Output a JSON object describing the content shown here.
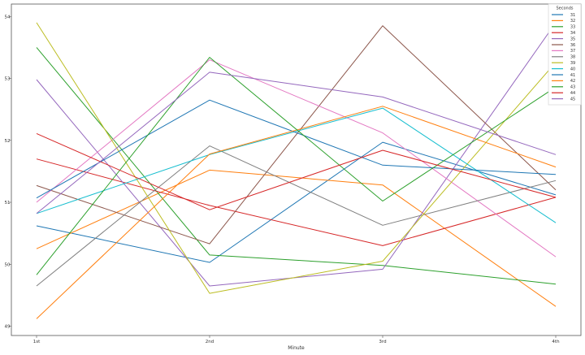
{
  "chart_data": {
    "type": "line",
    "title": "",
    "xlabel": "Minute",
    "ylabel": "",
    "categories": [
      "1st",
      "2nd",
      "3rd",
      "4th"
    ],
    "ylim": [
      48.85,
      54.2
    ],
    "yticks": [
      49,
      50,
      51,
      52,
      53,
      54
    ],
    "grid": false,
    "legend": {
      "title": "Seconds",
      "placement": "top-right"
    },
    "series": [
      {
        "name": "31",
        "color": "#1f77b4",
        "values": [
          50.62,
          50.03,
          51.97,
          51.12
        ]
      },
      {
        "name": "32",
        "color": "#ff7f0e",
        "values": [
          50.25,
          51.52,
          51.28,
          49.32
        ]
      },
      {
        "name": "33",
        "color": "#2ca02c",
        "values": [
          53.5,
          50.15,
          49.98,
          49.68
        ]
      },
      {
        "name": "34",
        "color": "#d62728",
        "values": [
          51.7,
          50.95,
          50.3,
          51.08
        ]
      },
      {
        "name": "35",
        "color": "#9467bd",
        "values": [
          52.98,
          49.65,
          49.92,
          53.9
        ]
      },
      {
        "name": "36",
        "color": "#8c564b",
        "values": [
          51.27,
          50.33,
          53.85,
          51.2
        ]
      },
      {
        "name": "37",
        "color": "#e377c2",
        "values": [
          51.0,
          53.3,
          52.12,
          50.12
        ]
      },
      {
        "name": "38",
        "color": "#7f7f7f",
        "values": [
          49.65,
          51.91,
          50.63,
          51.35
        ]
      },
      {
        "name": "39",
        "color": "#bcbd22",
        "values": [
          53.9,
          49.53,
          50.05,
          53.26
        ]
      },
      {
        "name": "40",
        "color": "#17becf",
        "values": [
          50.82,
          51.77,
          52.52,
          50.67
        ]
      },
      {
        "name": "41",
        "color": "#1f77b4",
        "values": [
          51.07,
          52.65,
          51.6,
          51.45
        ]
      },
      {
        "name": "42",
        "color": "#ff7f0e",
        "values": [
          49.12,
          51.78,
          52.55,
          51.57
        ]
      },
      {
        "name": "43",
        "color": "#2ca02c",
        "values": [
          49.83,
          53.34,
          51.02,
          52.86
        ]
      },
      {
        "name": "44",
        "color": "#d62728",
        "values": [
          52.11,
          50.88,
          51.84,
          51.08
        ]
      },
      {
        "name": "45",
        "color": "#9467bd",
        "values": [
          50.82,
          53.1,
          52.7,
          51.77
        ]
      }
    ]
  }
}
